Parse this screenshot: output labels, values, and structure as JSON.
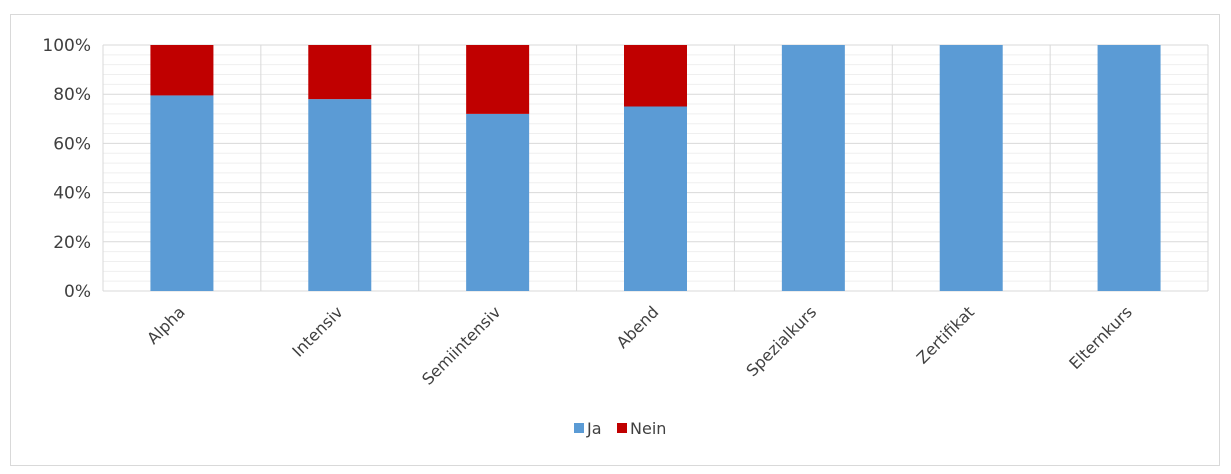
{
  "chart_data": {
    "type": "bar",
    "stacked": true,
    "categories": [
      "Alpha",
      "Intensiv",
      "Semiintensiv",
      "Abend",
      "Spezialkurs",
      "Zertifikat",
      "Elternkurs"
    ],
    "series": [
      {
        "name": "Ja",
        "color": "#5b9bd5",
        "values": [
          79.5,
          78,
          72,
          75,
          100,
          100,
          100
        ]
      },
      {
        "name": "Nein",
        "color": "#c00000",
        "values": [
          20.5,
          22,
          28,
          25,
          0,
          0,
          0
        ]
      }
    ],
    "ylim": [
      0,
      100
    ],
    "y_ticks": [
      0,
      20,
      40,
      60,
      80,
      100
    ],
    "y_tick_labels": [
      "0%",
      "20%",
      "40%",
      "60%",
      "80%",
      "100%"
    ],
    "grid": true,
    "legend_position": "bottom",
    "x_label_rotation": -45
  }
}
